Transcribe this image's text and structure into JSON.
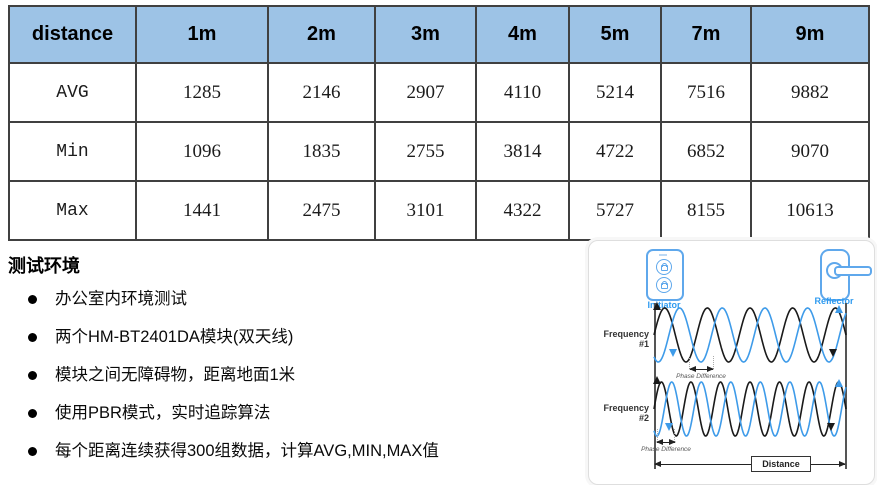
{
  "table": {
    "header": [
      "distance",
      "1m",
      "2m",
      "3m",
      "4m",
      "5m",
      "7m",
      "9m"
    ],
    "rows": [
      {
        "label": "AVG",
        "values": [
          "1285",
          "2146",
          "2907",
          "4110",
          "5214",
          "7516",
          "9882"
        ]
      },
      {
        "label": "Min",
        "values": [
          "1096",
          "1835",
          "2755",
          "3814",
          "4722",
          "6852",
          "9070"
        ]
      },
      {
        "label": "Max",
        "values": [
          "1441",
          "2475",
          "3101",
          "4322",
          "5727",
          "8155",
          "10613"
        ]
      }
    ]
  },
  "notes": {
    "title": "测试环境",
    "bullets": [
      "办公室内环境测试",
      "两个HM-BT2401DA模块(双天线)",
      "模块之间无障碍物，距离地面1米",
      "使用PBR模式，实时追踪算法",
      "每个距离连续获得300组数据，计算AVG,MIN,MAX值"
    ]
  },
  "diagram": {
    "initiator_label": "Initiator",
    "reflector_label": "Reflector",
    "frequency1_label": "Frequency #1",
    "frequency2_label": "Frequency #2",
    "phase_difference_label": "Phase Difference",
    "distance_label": "Distance"
  },
  "colors": {
    "table_header_bg": "#9DC3E6",
    "table_border": "#404040",
    "diagram_blue": "#3E9BE9",
    "wave_black": "#1a1a1a"
  },
  "chart_data": {
    "type": "table",
    "title": "distance",
    "categories": [
      "1m",
      "2m",
      "3m",
      "4m",
      "5m",
      "7m",
      "9m"
    ],
    "series": [
      {
        "name": "AVG",
        "values": [
          1285,
          2146,
          2907,
          4110,
          5214,
          7516,
          9882
        ]
      },
      {
        "name": "Min",
        "values": [
          1096,
          1835,
          2755,
          3814,
          4722,
          6852,
          9070
        ]
      },
      {
        "name": "Max",
        "values": [
          1441,
          2475,
          3101,
          4322,
          5727,
          8155,
          10613
        ]
      }
    ]
  }
}
